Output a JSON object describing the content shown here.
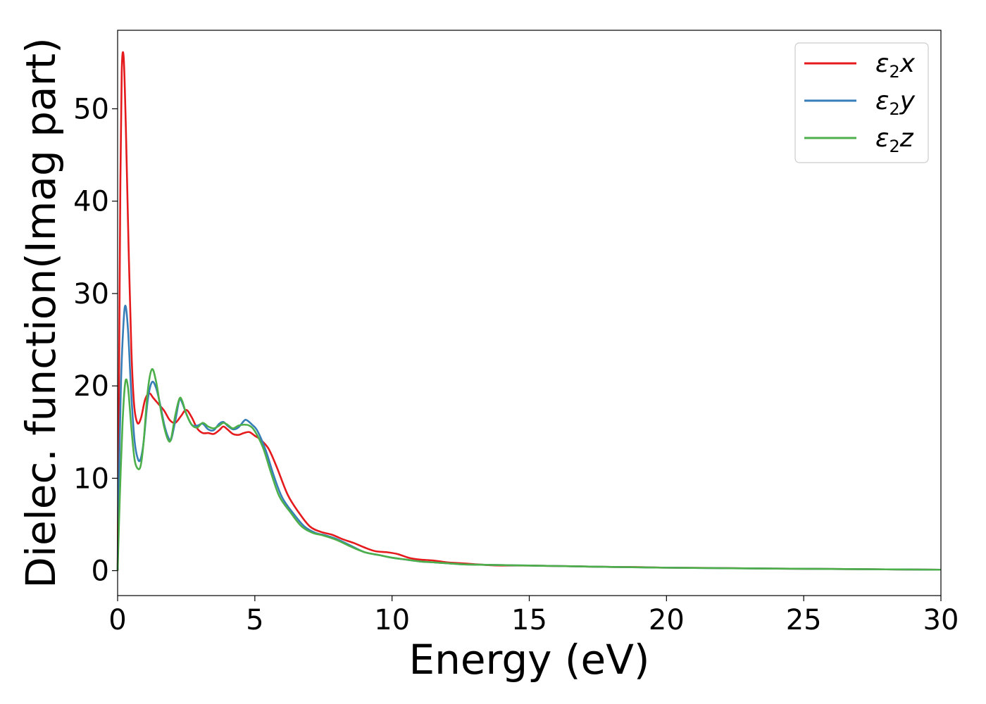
{
  "chart_data": {
    "type": "line",
    "title": "",
    "xlabel": "Energy (eV)",
    "ylabel": "Dielec. function(Imag part)",
    "xlim": [
      0,
      30
    ],
    "ylim": [
      -2.7,
      58.5
    ],
    "xticks": [
      0,
      5,
      10,
      15,
      20,
      25,
      30
    ],
    "yticks": [
      0,
      10,
      20,
      30,
      40,
      50
    ],
    "grid": false,
    "legend_position": "top-right",
    "series": [
      {
        "name": "ε2x",
        "legend_base": "ε",
        "legend_sub": "2",
        "legend_axis": "x",
        "color": "#e41a1c",
        "points": [
          [
            0,
            0
          ],
          [
            0.05,
            20
          ],
          [
            0.1,
            42
          ],
          [
            0.15,
            54
          ],
          [
            0.22,
            55.6
          ],
          [
            0.3,
            48
          ],
          [
            0.4,
            35
          ],
          [
            0.5,
            24
          ],
          [
            0.6,
            18
          ],
          [
            0.72,
            16
          ],
          [
            0.85,
            16.5
          ],
          [
            1.0,
            18.5
          ],
          [
            1.15,
            19.2
          ],
          [
            1.3,
            18.7
          ],
          [
            1.5,
            18
          ],
          [
            1.7,
            17.3
          ],
          [
            1.9,
            16.3
          ],
          [
            2.1,
            16
          ],
          [
            2.3,
            16.7
          ],
          [
            2.5,
            17.4
          ],
          [
            2.7,
            16.6
          ],
          [
            2.9,
            15.4
          ],
          [
            3.1,
            14.9
          ],
          [
            3.3,
            14.9
          ],
          [
            3.5,
            14.8
          ],
          [
            3.7,
            15.2
          ],
          [
            3.85,
            15.6
          ],
          [
            4.0,
            15.3
          ],
          [
            4.2,
            14.8
          ],
          [
            4.4,
            14.7
          ],
          [
            4.6,
            14.9
          ],
          [
            4.8,
            15
          ],
          [
            5.0,
            14.6
          ],
          [
            5.2,
            14.2
          ],
          [
            5.5,
            13.2
          ],
          [
            5.8,
            11.2
          ],
          [
            6.2,
            8.2
          ],
          [
            6.6,
            6.3
          ],
          [
            7.0,
            4.8
          ],
          [
            7.4,
            4.2
          ],
          [
            7.8,
            3.9
          ],
          [
            8.2,
            3.4
          ],
          [
            8.6,
            3
          ],
          [
            9.0,
            2.5
          ],
          [
            9.4,
            2.1
          ],
          [
            9.8,
            2
          ],
          [
            10.2,
            1.8
          ],
          [
            10.6,
            1.4
          ],
          [
            11.0,
            1.2
          ],
          [
            11.5,
            1.1
          ],
          [
            12.0,
            0.9
          ],
          [
            12.5,
            0.8
          ],
          [
            13.0,
            0.7
          ],
          [
            13.5,
            0.6
          ],
          [
            14.0,
            0.55
          ],
          [
            15.0,
            0.55
          ],
          [
            16.0,
            0.5
          ],
          [
            17.0,
            0.45
          ],
          [
            18.0,
            0.4
          ],
          [
            19.0,
            0.38
          ],
          [
            20.0,
            0.32
          ],
          [
            22.0,
            0.28
          ],
          [
            24.0,
            0.22
          ],
          [
            26.0,
            0.18
          ],
          [
            28.0,
            0.14
          ],
          [
            30.0,
            0.1
          ]
        ]
      },
      {
        "name": "ε2y",
        "legend_base": "ε",
        "legend_sub": "2",
        "legend_axis": "y",
        "color": "#377eb8",
        "points": [
          [
            0,
            0
          ],
          [
            0.05,
            10
          ],
          [
            0.12,
            20
          ],
          [
            0.2,
            26
          ],
          [
            0.28,
            28.7
          ],
          [
            0.38,
            26
          ],
          [
            0.5,
            19
          ],
          [
            0.62,
            14
          ],
          [
            0.75,
            12
          ],
          [
            0.85,
            12.2
          ],
          [
            0.95,
            14
          ],
          [
            1.1,
            18.5
          ],
          [
            1.25,
            20.4
          ],
          [
            1.4,
            19.8
          ],
          [
            1.55,
            18
          ],
          [
            1.7,
            15.8
          ],
          [
            1.85,
            14.4
          ],
          [
            1.95,
            14.2
          ],
          [
            2.1,
            16.2
          ],
          [
            2.25,
            18.5
          ],
          [
            2.35,
            18.2
          ],
          [
            2.5,
            17
          ],
          [
            2.7,
            15.8
          ],
          [
            2.9,
            15.7
          ],
          [
            3.1,
            15.9
          ],
          [
            3.3,
            15.3
          ],
          [
            3.5,
            15.2
          ],
          [
            3.7,
            15.9
          ],
          [
            3.85,
            16.1
          ],
          [
            4.0,
            15.7
          ],
          [
            4.2,
            15.3
          ],
          [
            4.4,
            15.5
          ],
          [
            4.6,
            16.2
          ],
          [
            4.7,
            16.3
          ],
          [
            4.9,
            15.8
          ],
          [
            5.1,
            15.1
          ],
          [
            5.4,
            13
          ],
          [
            5.7,
            10.2
          ],
          [
            6.0,
            7.9
          ],
          [
            6.4,
            6.2
          ],
          [
            6.8,
            4.8
          ],
          [
            7.2,
            4.1
          ],
          [
            7.6,
            3.8
          ],
          [
            8.0,
            3.4
          ],
          [
            8.5,
            2.7
          ],
          [
            9.0,
            2
          ],
          [
            9.5,
            1.7
          ],
          [
            10.0,
            1.4
          ],
          [
            10.5,
            1.2
          ],
          [
            11.0,
            1
          ],
          [
            11.5,
            0.9
          ],
          [
            12.0,
            0.8
          ],
          [
            12.5,
            0.7
          ],
          [
            13.0,
            0.65
          ],
          [
            14.0,
            0.6
          ],
          [
            15.0,
            0.55
          ],
          [
            16.0,
            0.5
          ],
          [
            17.0,
            0.45
          ],
          [
            18.0,
            0.4
          ],
          [
            19.0,
            0.36
          ],
          [
            20.0,
            0.32
          ],
          [
            22.0,
            0.27
          ],
          [
            24.0,
            0.22
          ],
          [
            26.0,
            0.18
          ],
          [
            28.0,
            0.14
          ],
          [
            30.0,
            0.1
          ]
        ]
      },
      {
        "name": "ε2z",
        "legend_base": "ε",
        "legend_sub": "2",
        "legend_axis": "z",
        "color": "#4daf4a",
        "points": [
          [
            0,
            0
          ],
          [
            0.08,
            8
          ],
          [
            0.18,
            16
          ],
          [
            0.28,
            20.4
          ],
          [
            0.38,
            19.8
          ],
          [
            0.5,
            15.5
          ],
          [
            0.62,
            12
          ],
          [
            0.75,
            11
          ],
          [
            0.85,
            11.5
          ],
          [
            0.95,
            14
          ],
          [
            1.1,
            19.5
          ],
          [
            1.25,
            21.8
          ],
          [
            1.4,
            20.5
          ],
          [
            1.55,
            17.8
          ],
          [
            1.7,
            15.5
          ],
          [
            1.85,
            14.1
          ],
          [
            1.95,
            14.3
          ],
          [
            2.1,
            16.8
          ],
          [
            2.25,
            18.6
          ],
          [
            2.35,
            18.4
          ],
          [
            2.5,
            17
          ],
          [
            2.7,
            15.8
          ],
          [
            2.9,
            15.5
          ],
          [
            3.1,
            16
          ],
          [
            3.3,
            15.6
          ],
          [
            3.5,
            15.4
          ],
          [
            3.7,
            15.7
          ],
          [
            3.85,
            16
          ],
          [
            4.0,
            15.8
          ],
          [
            4.2,
            15.4
          ],
          [
            4.4,
            15.7
          ],
          [
            4.6,
            15.8
          ],
          [
            4.8,
            15.7
          ],
          [
            5.0,
            15.1
          ],
          [
            5.3,
            13.3
          ],
          [
            5.6,
            10.5
          ],
          [
            5.9,
            8
          ],
          [
            6.3,
            6.3
          ],
          [
            6.7,
            4.8
          ],
          [
            7.1,
            4.1
          ],
          [
            7.5,
            3.8
          ],
          [
            8.0,
            3.3
          ],
          [
            8.5,
            2.6
          ],
          [
            9.0,
            2
          ],
          [
            9.5,
            1.7
          ],
          [
            10.0,
            1.4
          ],
          [
            10.5,
            1.2
          ],
          [
            11.0,
            1
          ],
          [
            11.5,
            0.9
          ],
          [
            12.0,
            0.8
          ],
          [
            12.5,
            0.7
          ],
          [
            13.0,
            0.65
          ],
          [
            14.0,
            0.6
          ],
          [
            15.0,
            0.55
          ],
          [
            16.0,
            0.5
          ],
          [
            17.0,
            0.45
          ],
          [
            18.0,
            0.4
          ],
          [
            19.0,
            0.36
          ],
          [
            20.0,
            0.32
          ],
          [
            22.0,
            0.27
          ],
          [
            24.0,
            0.22
          ],
          [
            26.0,
            0.18
          ],
          [
            28.0,
            0.14
          ],
          [
            30.0,
            0.1
          ]
        ]
      }
    ]
  }
}
